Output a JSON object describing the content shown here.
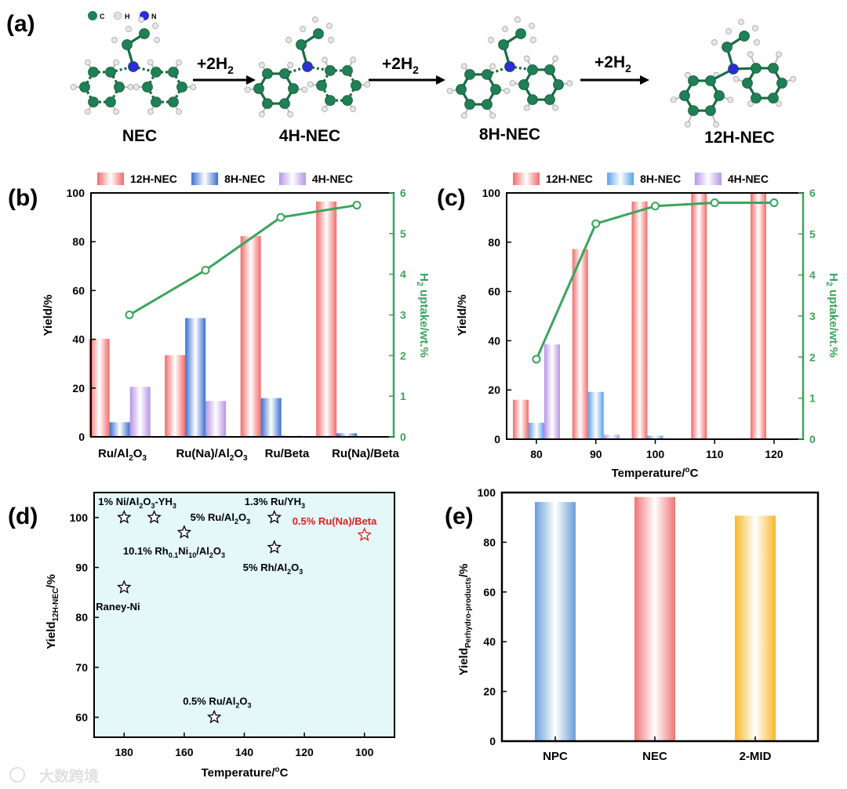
{
  "panel_a": {
    "label": "(a)",
    "legend": [
      {
        "atom": "C",
        "color": "#1f7f55"
      },
      {
        "atom": "H",
        "color": "#d9d9d9"
      },
      {
        "atom": "N",
        "color": "#2c2cd9"
      }
    ],
    "molecules": [
      "NEC",
      "4H-NEC",
      "8H-NEC",
      "12H-NEC"
    ],
    "arrow_labels": [
      "+2H",
      "+2H",
      "+2H"
    ],
    "arrow_sub": "2"
  },
  "chart_data": [
    {
      "panel": "(b)",
      "type": "bar",
      "categories": [
        "Ru/Al2O3",
        "Ru(Na)/Al2O3",
        "Ru/Beta",
        "Ru(Na)/Beta"
      ],
      "category_labels": [
        {
          "main": "Ru/Al",
          "sub1": "2",
          "mid": "O",
          "sub2": "3"
        },
        {
          "main": "Ru(Na)/Al",
          "sub1": "2",
          "mid": "O",
          "sub2": "3"
        },
        {
          "main": "Ru/Beta",
          "sub1": "",
          "mid": "",
          "sub2": ""
        },
        {
          "main": "Ru(Na)/Beta",
          "sub1": "",
          "mid": "",
          "sub2": ""
        }
      ],
      "series": [
        {
          "name": "12H-NEC",
          "values": [
            40.2,
            33.5,
            82.3,
            96.5
          ],
          "color": "#f26b6b"
        },
        {
          "name": "8H-NEC",
          "values": [
            6.0,
            48.7,
            15.9,
            1.5
          ],
          "color": "#3b6fd0"
        },
        {
          "name": "4H-NEC",
          "values": [
            20.5,
            14.7,
            0.5,
            0
          ],
          "color": "#b794e6"
        }
      ],
      "line": {
        "name": "H2 uptake",
        "values": [
          3.0,
          4.1,
          5.4,
          5.7
        ],
        "color": "#3aa55d"
      },
      "ylabel": "Yield/%",
      "y2label_parts": {
        "a": "H",
        "sub": "2",
        "b": " uptake/wt.%"
      },
      "ylim": [
        0,
        100
      ],
      "y2lim": [
        0,
        6
      ],
      "yticks": [
        0,
        20,
        40,
        60,
        80,
        100
      ],
      "y2ticks": [
        0,
        1,
        2,
        3,
        4,
        5,
        6
      ],
      "legend": [
        "12H-NEC",
        "8H-NEC",
        "4H-NEC"
      ]
    },
    {
      "panel": "(c)",
      "type": "bar",
      "categories": [
        "80",
        "90",
        "100",
        "110",
        "120"
      ],
      "series": [
        {
          "name": "12H-NEC",
          "values": [
            16,
            77.2,
            96.5,
            100,
            100
          ],
          "color": "#f26b6b"
        },
        {
          "name": "8H-NEC",
          "values": [
            6.7,
            19.2,
            1.4,
            0,
            0
          ],
          "color": "#5aa0e8"
        },
        {
          "name": "4H-NEC",
          "values": [
            38.5,
            1.8,
            0,
            0,
            0
          ],
          "color": "#b794e6"
        }
      ],
      "line": {
        "name": "H2 uptake",
        "values": [
          1.95,
          5.25,
          5.68,
          5.76,
          5.76
        ],
        "color": "#3aa55d"
      },
      "xlabel": "Temperature/",
      "xlabel_unit": "C",
      "xlabel_deg": "o",
      "ylabel": "Yield/%",
      "y2label_parts": {
        "a": "H",
        "sub": "2",
        "b": " uptake/wt.%"
      },
      "ylim": [
        0,
        100
      ],
      "y2lim": [
        0,
        6
      ],
      "xticks": [
        80,
        90,
        100,
        110,
        120
      ],
      "yticks": [
        0,
        20,
        40,
        60,
        80,
        100
      ],
      "y2ticks": [
        0,
        1,
        2,
        3,
        4,
        5,
        6
      ],
      "legend": [
        "12H-NEC",
        "8H-NEC",
        "4H-NEC"
      ]
    },
    {
      "panel": "(d)",
      "type": "scatter",
      "points": [
        {
          "x": 180,
          "y": 100,
          "parts": [
            [
              "1% Ni/Al",
              ""
            ],
            [
              "2",
              "sub"
            ],
            [
              "O",
              ""
            ],
            [
              "3",
              "sub"
            ],
            [
              "-YH",
              ""
            ],
            [
              "3",
              "sub"
            ]
          ],
          "highlight": false
        },
        {
          "x": 170,
          "y": 100,
          "parts": [
            [
              "5% Ru/Al",
              ""
            ],
            [
              "2",
              "sub"
            ],
            [
              "O",
              ""
            ],
            [
              "3",
              "sub"
            ]
          ],
          "highlight": false
        },
        {
          "x": 160,
          "y": 97,
          "parts": [
            [
              "10.1% Rh",
              ""
            ],
            [
              "0.1",
              "sub"
            ],
            [
              "Ni",
              ""
            ],
            [
              "10",
              "sub"
            ],
            [
              "/Al",
              ""
            ],
            [
              "2",
              "sub"
            ],
            [
              "O",
              ""
            ],
            [
              "3",
              "sub"
            ]
          ],
          "highlight": false
        },
        {
          "x": 130,
          "y": 100,
          "parts": [
            [
              "1.3% Ru/YH",
              ""
            ],
            [
              "3",
              "sub"
            ]
          ],
          "highlight": false
        },
        {
          "x": 130,
          "y": 94,
          "parts": [
            [
              "5% Rh/Al",
              ""
            ],
            [
              "2",
              "sub"
            ],
            [
              "O",
              ""
            ],
            [
              "3",
              "sub"
            ]
          ],
          "highlight": false
        },
        {
          "x": 100,
          "y": 96.5,
          "parts": [
            [
              "0.5% Ru(Na)/Beta",
              ""
            ]
          ],
          "highlight": true
        },
        {
          "x": 180,
          "y": 86,
          "parts": [
            [
              "Raney-Ni",
              ""
            ]
          ],
          "highlight": false
        },
        {
          "x": 150,
          "y": 60,
          "parts": [
            [
              "0.5% Ru/Al",
              ""
            ],
            [
              "2",
              "sub"
            ],
            [
              "O",
              ""
            ],
            [
              "3",
              "sub"
            ]
          ],
          "highlight": false
        }
      ],
      "xlim": [
        190,
        90
      ],
      "ylim": [
        56,
        105
      ],
      "xticks": [
        180,
        160,
        140,
        120,
        100
      ],
      "yticks": [
        60,
        70,
        80,
        90,
        100
      ],
      "xlabel": "Temperature/",
      "xlabel_unit": "C",
      "xlabel_deg": "o",
      "ylabel_parts": {
        "a": "Yield",
        "sub": "12H-NEC",
        "b": "/%"
      },
      "background": "#e4f7f9",
      "highlight_color": "#e02020"
    },
    {
      "panel": "(e)",
      "type": "bar",
      "categories": [
        "NPC",
        "NEC",
        "2-MID"
      ],
      "values": [
        96.2,
        98.2,
        90.7
      ],
      "colors": [
        "#6a9fd8",
        "#f07575",
        "#f6b92a"
      ],
      "ylim": [
        0,
        100
      ],
      "yticks": [
        0,
        20,
        40,
        60,
        80,
        100
      ],
      "ylabel_parts": {
        "a": "Yield",
        "sub": "Perhydro-products",
        "b": "/%"
      }
    }
  ],
  "watermark": "大数跨境"
}
